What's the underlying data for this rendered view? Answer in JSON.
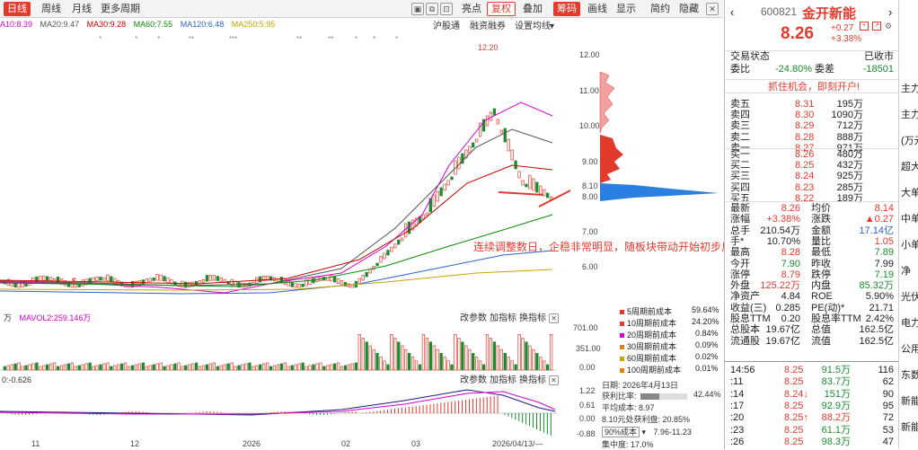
{
  "toolbar": {
    "period_tabs": [
      "日线",
      "周线",
      "月线",
      "更多周期"
    ],
    "buttons": [
      "亮点",
      "复权",
      "叠加",
      "筹码",
      "画线",
      "显示",
      "简约",
      "隐藏"
    ]
  },
  "ma_line": {
    "items": [
      {
        "text": "A10:8.39",
        "color": "#d400d4"
      },
      {
        "text": "MA20:9.47",
        "color": "#555555"
      },
      {
        "text": "MA30:9.28",
        "color": "#c90000"
      },
      {
        "text": "MA60:7.55",
        "color": "#0a8a0a"
      },
      {
        "text": "MA120:6.48",
        "color": "#2b63c6"
      },
      {
        "text": "MA250:5.95",
        "color": "#c8a400"
      }
    ]
  },
  "sub_toolbar": {
    "hgt": "沪股通",
    "margin": "融资融券",
    "settings": "设置均线"
  },
  "chart_labels": {
    "high_price": "12.20",
    "annotation": "连续调整数日，企稳非常明显，随板块带动开始初步反弹",
    "right_axis": [
      "12.00",
      "11.00",
      "10.00",
      "9.00",
      "8.10",
      "8.00",
      "7.00",
      "6.00"
    ],
    "vol_label": "万",
    "mavol": "MAVOL2:259.146万",
    "vol_axis": [
      "701.00",
      "351.00",
      "0.00"
    ],
    "macd_label": "0:-0.626",
    "macd_axis": [
      "1.22",
      "0.61",
      "0.00",
      "-0.44",
      "-0.88"
    ],
    "x_axis": [
      "11",
      "12",
      "2026",
      "02",
      "03"
    ],
    "date_bar": "2026/04/13/—",
    "panel_tools": [
      "改参数",
      "加指标",
      "换指标"
    ]
  },
  "chip_legend": [
    {
      "text": "5周期前成本",
      "pct": "59.64%",
      "color": "#e23b2e"
    },
    {
      "text": "10周期前成本",
      "pct": "24.20%",
      "color": "#e23b2e"
    },
    {
      "text": "20周期前成本",
      "pct": "0.84%",
      "color": "#d400d4"
    },
    {
      "text": "30周期前成本",
      "pct": "0.09%",
      "color": "#e08000"
    },
    {
      "text": "60周期前成本",
      "pct": "0.02%",
      "color": "#c8a400"
    },
    {
      "text": "100周期前成本",
      "pct": "0.01%",
      "color": "#e08000"
    }
  ],
  "chip_info": {
    "date": "日期: 2026年4月13日",
    "profit": "获利比率:",
    "profit_val": "42.44%",
    "avg": "平均成本: 8.97",
    "range": "8.10元处获利盘: 20.85%",
    "cost90": "90%成本",
    "cost90_val": "7.96-11.23",
    "concentration": "集中度: 17.0%"
  },
  "quote": {
    "code": "600821",
    "name": "金开新能",
    "price": "8.26",
    "change": "+0.27",
    "change_pct": "+3.38%",
    "status_label": "交易状态",
    "status": "已收市",
    "weibi_label": "委比",
    "weibi": "-24.80%",
    "weicha_label": "委差",
    "weicha": "-18501",
    "promo": "抓住机会，即刻开户!",
    "asks": [
      {
        "label": "卖五",
        "price": "8.31",
        "vol": "195万"
      },
      {
        "label": "卖四",
        "price": "8.30",
        "vol": "1090万"
      },
      {
        "label": "卖三",
        "price": "8.29",
        "vol": "712万"
      },
      {
        "label": "卖二",
        "price": "8.28",
        "vol": "888万"
      },
      {
        "label": "卖一",
        "price": "8.27",
        "vol": "971万"
      }
    ],
    "bids": [
      {
        "label": "买一",
        "price": "8.26",
        "vol": "480万"
      },
      {
        "label": "买二",
        "price": "8.25",
        "vol": "432万"
      },
      {
        "label": "买三",
        "price": "8.24",
        "vol": "925万"
      },
      {
        "label": "买四",
        "price": "8.23",
        "vol": "285万"
      },
      {
        "label": "买五",
        "price": "8.22",
        "vol": "189万"
      }
    ],
    "stats": [
      {
        "l1": "最新",
        "v1": "8.26",
        "c1": "red",
        "l2": "均价",
        "v2": "8.14",
        "c2": "red"
      },
      {
        "l1": "涨幅",
        "v1": "+3.38%",
        "c1": "red",
        "l2": "涨跌",
        "v2": "▲0.27",
        "c2": "red"
      },
      {
        "l1": "总手",
        "v1": "210.54万",
        "c1": "",
        "l2": "金额",
        "v2": "17.14亿",
        "c2": "blue"
      },
      {
        "l1": "手*",
        "v1": "10.70%",
        "c1": "",
        "l2": "量比",
        "v2": "1.05",
        "c2": "red"
      },
      {
        "l1": "最高",
        "v1": "8.28",
        "c1": "red",
        "l2": "最低",
        "v2": "7.89",
        "c2": "green"
      },
      {
        "l1": "今开",
        "v1": "7.90",
        "c1": "green",
        "l2": "昨收",
        "v2": "7.99",
        "c2": ""
      },
      {
        "l1": "涨停",
        "v1": "8.79",
        "c1": "red",
        "l2": "跌停",
        "v2": "7.19",
        "c2": "green"
      },
      {
        "l1": "外盘",
        "v1": "125.22万",
        "c1": "red",
        "l2": "内盘",
        "v2": "85.32万",
        "c2": "green"
      },
      {
        "l1": "净资产",
        "v1": "4.84",
        "c1": "",
        "l2": "ROE",
        "v2": "5.90%",
        "c2": ""
      },
      {
        "l1": "收益(三)",
        "v1": "0.285",
        "c1": "",
        "l2": "PE(动)*",
        "v2": "21.71",
        "c2": ""
      },
      {
        "l1": "股息TTM",
        "v1": "0.20",
        "c1": "",
        "l2": "股息率TTM",
        "v2": "2.42%",
        "c2": ""
      },
      {
        "l1": "总股本",
        "v1": "19.67亿",
        "c1": "",
        "l2": "总值",
        "v2": "162.5亿",
        "c2": ""
      },
      {
        "l1": "流通股",
        "v1": "19.67亿",
        "c1": "",
        "l2": "流值",
        "v2": "162.5亿",
        "c2": ""
      }
    ],
    "ticks": [
      {
        "time": "14:56",
        "price": "8.25",
        "vol": "91.5万",
        "n": "116",
        "vc": "green"
      },
      {
        "time": ":11",
        "price": "8.25",
        "vol": "83.7万",
        "n": "62",
        "vc": "green"
      },
      {
        "time": ":14",
        "price": "8.24↓",
        "vol": "151万",
        "n": "90",
        "vc": "green"
      },
      {
        "time": ":17",
        "price": "8.25",
        "vol": "92.9万",
        "n": "95",
        "vc": "green"
      },
      {
        "time": ":20",
        "price": "8.25↑",
        "vol": "88.2万",
        "n": "72",
        "vc": "red"
      },
      {
        "time": ":23",
        "price": "8.25",
        "vol": "61.1万",
        "n": "53",
        "vc": "green"
      },
      {
        "time": ":26",
        "price": "8.25",
        "vol": "98.3万",
        "n": "47",
        "vc": "green"
      }
    ]
  },
  "far_right": [
    "主力",
    "主力",
    "(万元",
    "超大",
    "大单",
    "中单",
    "小单",
    "净",
    "光伏",
    "电力",
    "公用",
    "东数",
    "新能",
    "新能"
  ]
}
